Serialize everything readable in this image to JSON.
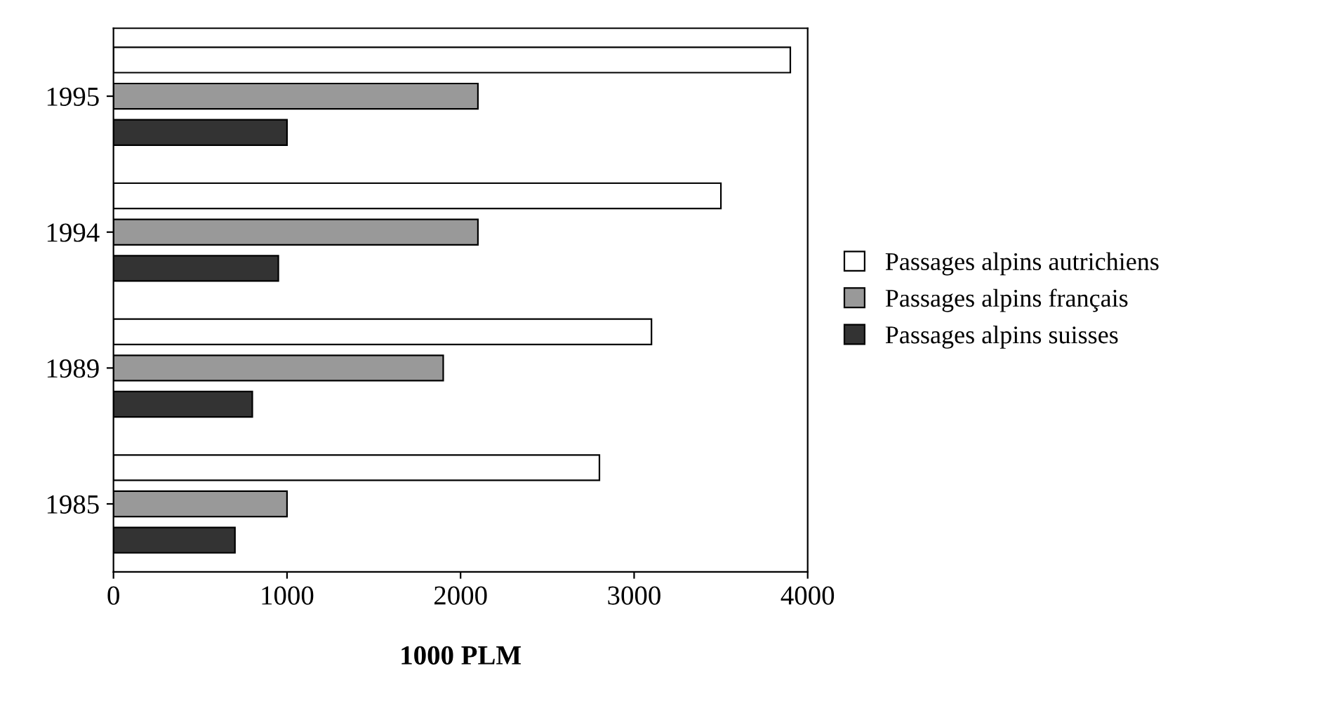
{
  "chart_data": {
    "type": "bar",
    "orientation": "horizontal",
    "xlabel": "1000 PLM",
    "categories": [
      "1995",
      "1994",
      "1989",
      "1985"
    ],
    "series": [
      {
        "name": "Passages alpins autrichiens",
        "color": "#ffffff",
        "values": [
          3900,
          3500,
          3100,
          2800
        ]
      },
      {
        "name": "Passages alpins français",
        "color": "#999999",
        "values": [
          2100,
          2100,
          1900,
          1000
        ]
      },
      {
        "name": "Passages alpins suisses",
        "color": "#333333",
        "values": [
          1000,
          950,
          800,
          700
        ]
      }
    ],
    "xlim": [
      0,
      4000
    ],
    "xticks": [
      0,
      1000,
      2000,
      3000,
      4000
    ],
    "grid": false,
    "legend": "right"
  }
}
